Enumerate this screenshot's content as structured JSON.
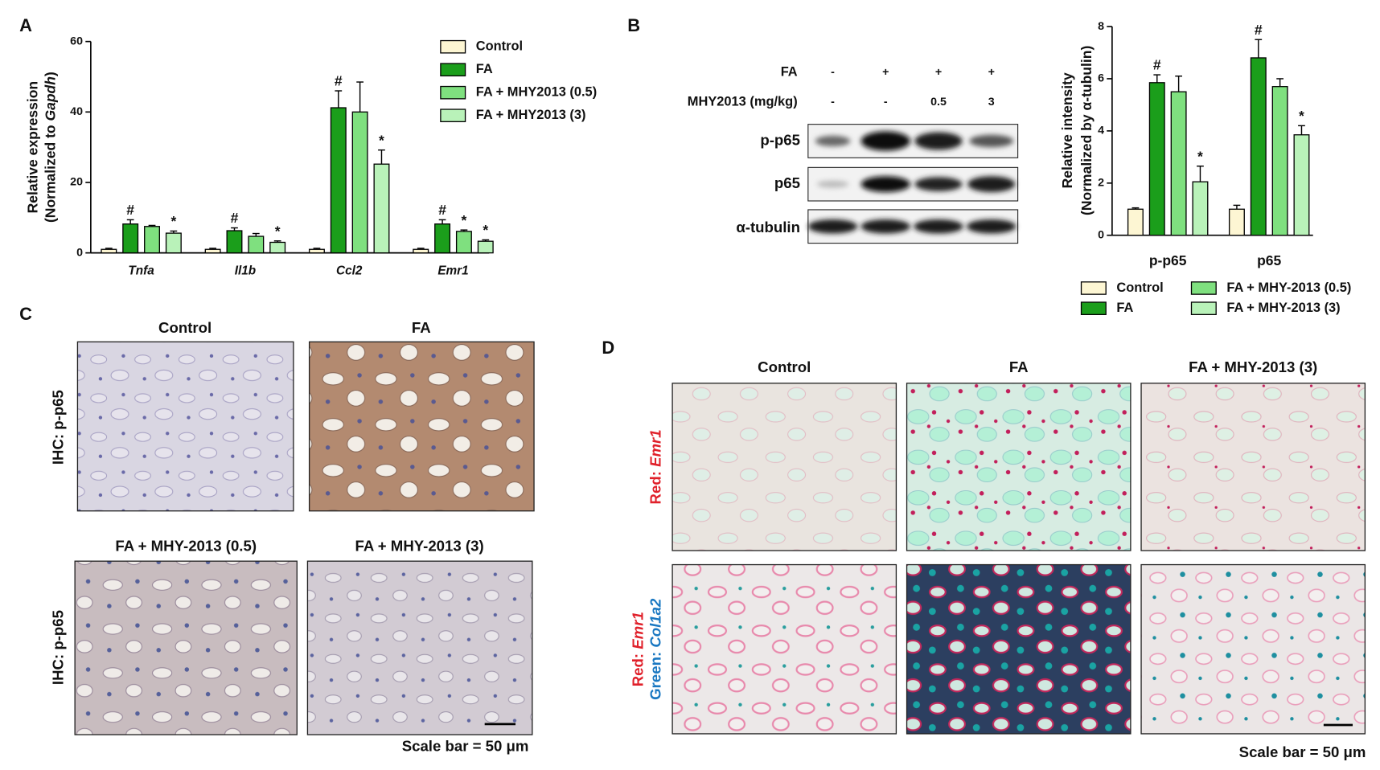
{
  "panel_labels": [
    "A",
    "B",
    "C",
    "D"
  ],
  "chart_data": [
    {
      "type": "bar",
      "categories": [
        "Tnfa",
        "Il1b",
        "Ccl2",
        "Emr1"
      ],
      "ylabel": [
        [
          "Relative expression"
        ],
        [
          "(Normalized to ",
          "Gapdh",
          ")"
        ]
      ],
      "ylim": [
        0,
        60
      ],
      "yticks": [
        0,
        20,
        40,
        60
      ],
      "series": [
        {
          "name": "Control",
          "color": "#fdf6d3",
          "values": [
            1,
            1,
            1,
            1
          ],
          "errors": [
            0.3,
            0.3,
            0.3,
            0.3
          ],
          "markers": [
            null,
            null,
            null,
            null
          ]
        },
        {
          "name": "FA",
          "color": "#1b9e1b",
          "values": [
            8.2,
            6.3,
            41.2,
            8.2
          ],
          "errors": [
            1.2,
            0.8,
            4.8,
            1.2
          ],
          "markers": [
            "#",
            "#",
            "#",
            "#"
          ]
        },
        {
          "name": "FA + MHY2013 (0.5)",
          "color": "#7fe07f",
          "values": [
            7.5,
            4.7,
            40,
            6.1
          ],
          "errors": [
            0.3,
            0.8,
            8.5,
            0.4
          ],
          "markers": [
            null,
            null,
            null,
            "*"
          ]
        },
        {
          "name": "FA + MHY2013 (3)",
          "color": "#b9f2b9",
          "values": [
            5.6,
            3.0,
            25.2,
            3.3
          ],
          "errors": [
            0.6,
            0.4,
            4,
            0.4
          ],
          "markers": [
            "*",
            "*",
            "*",
            "*"
          ]
        }
      ]
    },
    {
      "type": "bar",
      "categories": [
        "p-p65",
        "p65"
      ],
      "ylabel": [
        [
          "Relative intensity"
        ],
        [
          "(Normalized by α-tubulin)"
        ]
      ],
      "ylim": [
        0,
        8
      ],
      "yticks": [
        0,
        2,
        4,
        6,
        8
      ],
      "series": [
        {
          "name": "Control",
          "color": "#fdf6d3",
          "values": [
            1.0,
            1.0
          ],
          "errors": [
            0.05,
            0.15
          ],
          "markers": [
            null,
            null
          ]
        },
        {
          "name": "FA",
          "color": "#1b9e1b",
          "values": [
            5.85,
            6.8
          ],
          "errors": [
            0.3,
            0.7
          ],
          "markers": [
            "#",
            "#"
          ]
        },
        {
          "name": "FA + MHY-2013 (0.5)",
          "color": "#7fe07f",
          "values": [
            5.5,
            5.7
          ],
          "errors": [
            0.6,
            0.3
          ],
          "markers": [
            null,
            null
          ]
        },
        {
          "name": "FA + MHY-2013 (3)",
          "color": "#b9f2b9",
          "values": [
            2.05,
            3.85
          ],
          "errors": [
            0.6,
            0.35
          ],
          "markers": [
            "*",
            "*"
          ]
        }
      ]
    }
  ],
  "blot": {
    "treatments": [
      {
        "label": "FA",
        "lanes": [
          "-",
          "+",
          "+",
          "+"
        ]
      },
      {
        "label": "MHY2013 (mg/kg)",
        "lanes": [
          "-",
          "-",
          "0.5",
          "3"
        ]
      }
    ],
    "rows": [
      "p-p65",
      "p65",
      "α-tubulin"
    ]
  },
  "ihc": {
    "titles": [
      "Control",
      "FA",
      "FA + MHY-2013 (0.5)",
      "FA + MHY-2013 (3)"
    ],
    "row_labels": [
      "IHC: p-p65",
      "IHC: p-p65"
    ],
    "scale_bar": "Scale bar = 50 μm"
  },
  "ish": {
    "titles": [
      "Control",
      "FA",
      "FA + MHY-2013 (3)"
    ],
    "row_labels": [
      [
        [
          "Red: ",
          "Emr1"
        ]
      ],
      [
        [
          "Red: ",
          "Emr1"
        ],
        [
          "Green: ",
          "Col1a2"
        ]
      ]
    ],
    "scale_bar": "Scale bar = 50 μm"
  }
}
